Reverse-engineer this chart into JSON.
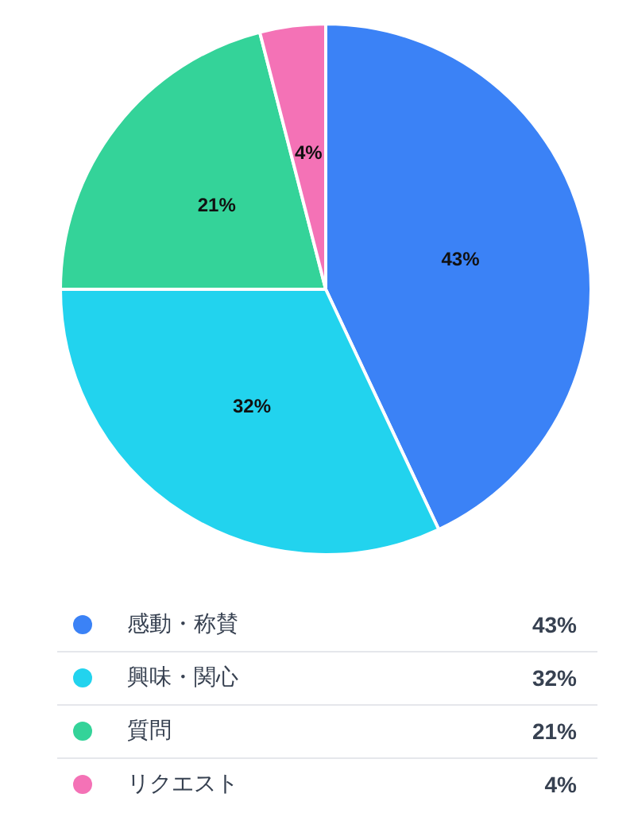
{
  "chart_data": {
    "type": "pie",
    "categories": [
      "感動・称賛",
      "興味・関心",
      "質問",
      "リクエスト"
    ],
    "values": [
      43,
      32,
      21,
      4
    ],
    "colors": [
      "#3b82f6",
      "#22d3ee",
      "#34d399",
      "#f472b6"
    ],
    "value_labels": [
      "43%",
      "32%",
      "21%",
      "4%"
    ],
    "legend": "bottom"
  }
}
